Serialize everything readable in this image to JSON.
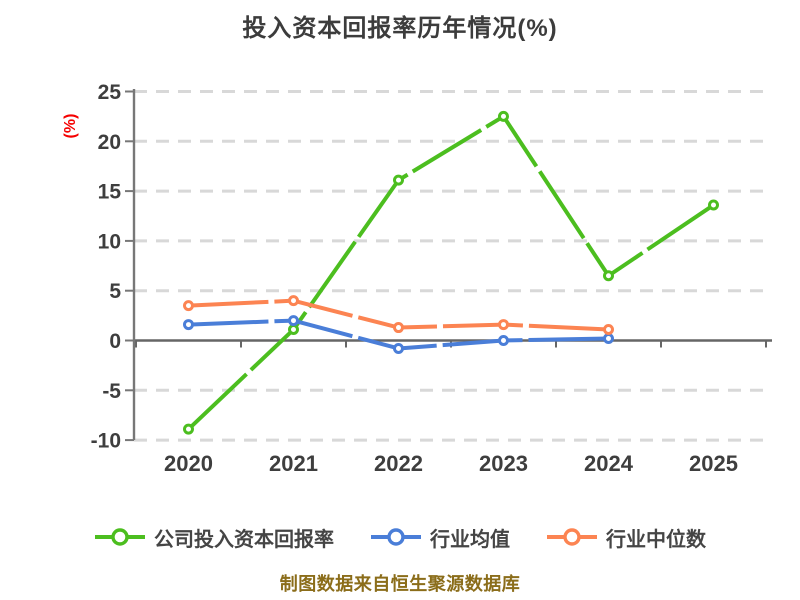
{
  "title": "投入资本回报率历年情况(%)",
  "ylabel": "(%)",
  "footer": "制图数据来自恒生聚源数据库",
  "colors": {
    "company": "#4cbe1f",
    "industry_mean": "#4a7ed8",
    "industry_median": "#fc8452",
    "title_text": "#3c3c3c",
    "tick_text": "#3e3e3e",
    "legend_text": "#454545",
    "axis_line": "#777777",
    "zero_line": "#666666",
    "gridline": "#d8d8d8",
    "ylabel_red": "#f50000",
    "footer_text": "#8b6d1a",
    "marker_fill": "#ffffff"
  },
  "chart_data": {
    "type": "line",
    "title": "投入资本回报率历年情况(%)",
    "xlabel": "",
    "ylabel": "(%)",
    "categories": [
      "2020",
      "2021",
      "2022",
      "2023",
      "2024",
      "2025"
    ],
    "series": [
      {
        "id": "company-roic",
        "name": "公司投入资本回报率",
        "color": "#4cbe1f",
        "values": [
          -8.9,
          1.1,
          16.1,
          22.5,
          6.5,
          13.6
        ]
      },
      {
        "id": "industry-mean",
        "name": "行业均值",
        "color": "#4a7ed8",
        "values": [
          1.6,
          2.0,
          -0.8,
          0.0,
          0.2,
          null
        ]
      },
      {
        "id": "industry-median",
        "name": "行业中位数",
        "color": "#fc8452",
        "values": [
          3.5,
          4.0,
          1.3,
          1.6,
          1.1,
          null
        ]
      }
    ],
    "yticks": [
      25,
      20,
      15,
      10,
      5,
      0,
      -5,
      -10
    ],
    "ylim": [
      -10,
      25
    ],
    "grid": "dashed-horizontal",
    "legend_position": "bottom"
  }
}
